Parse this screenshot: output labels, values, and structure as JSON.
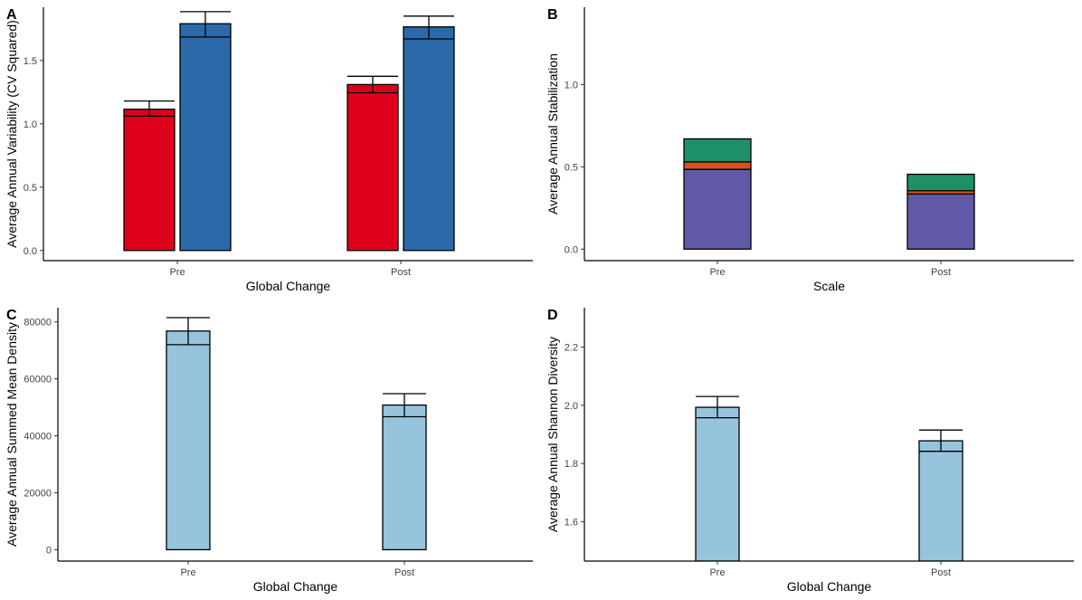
{
  "chart_data": [
    {
      "panel_label": "A",
      "type": "bar",
      "categories": [
        "Pre",
        "Post"
      ],
      "xlabel": "Global Change",
      "ylabel": "Average Annual Variability (CV Squared)",
      "ylim": [
        -0.08,
        1.92
      ],
      "yticks": [
        0.0,
        0.5,
        1.0,
        1.5
      ],
      "ytick_labels": [
        "0.0",
        "0.5",
        "1.0",
        "1.5"
      ],
      "series": [
        {
          "color": "#DE001B",
          "values": [
            1.115,
            1.31
          ],
          "err_low": [
            1.06,
            1.245
          ],
          "err_high": [
            1.18,
            1.375
          ]
        },
        {
          "color": "#2B69A8",
          "values": [
            1.79,
            1.765
          ],
          "err_low": [
            1.685,
            1.67
          ],
          "err_high": [
            1.885,
            1.85
          ]
        }
      ],
      "grid": false
    },
    {
      "panel_label": "B",
      "type": "bar",
      "stacked": true,
      "categories": [
        "Pre",
        "Post"
      ],
      "xlabel": "Scale",
      "ylabel": "Average Annual Stabilization",
      "ylim": [
        -0.07,
        1.47
      ],
      "yticks": [
        0.0,
        0.5,
        1.0
      ],
      "ytick_labels": [
        "0.0",
        "0.5",
        "1.0"
      ],
      "series": [
        {
          "color": "#6059A6",
          "values": [
            0.485,
            0.335
          ]
        },
        {
          "color": "#D4501F",
          "values": [
            0.045,
            0.02
          ]
        },
        {
          "color": "#1E9068",
          "values": [
            0.14,
            0.1
          ]
        }
      ],
      "grid": false
    },
    {
      "panel_label": "C",
      "type": "bar",
      "categories": [
        "Pre",
        "Post"
      ],
      "xlabel": "Global Change",
      "ylabel": "Average Annual Summed Mean Density",
      "ylim": [
        -4000,
        85000
      ],
      "yticks": [
        0,
        20000,
        40000,
        60000,
        80000
      ],
      "ytick_labels": [
        "0",
        "20000",
        "40000",
        "60000",
        "80000"
      ],
      "series": [
        {
          "color": "#96C4DD",
          "values": [
            76800,
            50800
          ],
          "err_low": [
            72000,
            46700
          ],
          "err_high": [
            81500,
            54800
          ]
        }
      ],
      "grid": false
    },
    {
      "panel_label": "D",
      "type": "bar",
      "categories": [
        "Pre",
        "Post"
      ],
      "xlabel": "Global Change",
      "ylabel": "Average Annual Shannon Diversity",
      "ylim": [
        1.465,
        2.335
      ],
      "yticks": [
        1.6,
        1.8,
        2.0,
        2.2
      ],
      "ytick_labels": [
        "1.6",
        "1.8",
        "2.0",
        "2.2"
      ],
      "series": [
        {
          "color": "#96C4DD",
          "values": [
            1.993,
            1.878
          ],
          "err_low": [
            1.957,
            1.842
          ],
          "err_high": [
            2.03,
            1.915
          ]
        }
      ],
      "grid": false
    }
  ]
}
